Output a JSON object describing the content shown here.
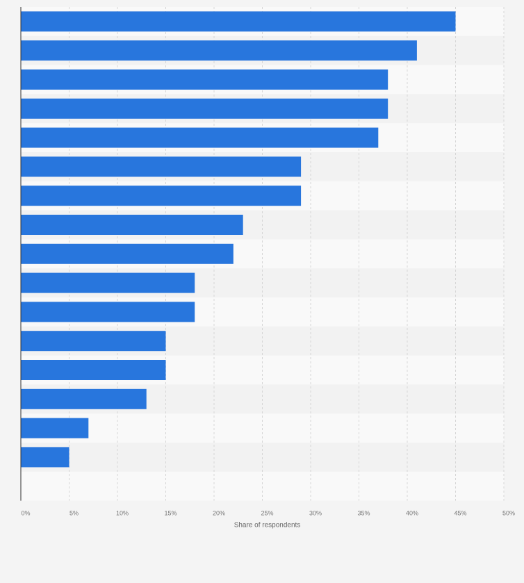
{
  "chart_data": {
    "type": "bar",
    "orientation": "horizontal",
    "categories": [
      "",
      "",
      "",
      "",
      "",
      "",
      "",
      "",
      "",
      "",
      "",
      "",
      "",
      "",
      "",
      "",
      ""
    ],
    "values": [
      45,
      41,
      38,
      38,
      37,
      29,
      29,
      23,
      22,
      18,
      18,
      15,
      15,
      13,
      7,
      5,
      0
    ],
    "unit": "%",
    "title": "",
    "xlabel": "Share of respondents",
    "ylabel": "",
    "xlim": [
      0,
      50
    ],
    "xticks": [
      0,
      5,
      10,
      15,
      20,
      25,
      30,
      35,
      40,
      45,
      50
    ],
    "xtick_labels": [
      "0%",
      "5%",
      "10%",
      "15%",
      "20%",
      "25%",
      "30%",
      "35%",
      "40%",
      "45%",
      "50%"
    ],
    "grid": "vertical dashed",
    "legend": "none",
    "colors": {
      "bar": "#2876dd",
      "band_light": "#f9f9f9",
      "band_dark": "#f2f2f2",
      "grid": "#d6d6d6",
      "axis": "#333333"
    }
  }
}
